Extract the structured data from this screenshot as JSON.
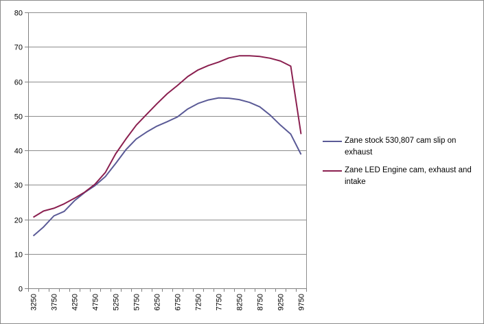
{
  "chart_data": {
    "type": "line",
    "title": "",
    "xlabel": "",
    "ylabel": "",
    "ylim": [
      0,
      80
    ],
    "yticks": [
      0,
      10,
      20,
      30,
      40,
      50,
      60,
      70,
      80
    ],
    "grid": "horizontal",
    "legend_position": "right",
    "x": [
      3250,
      3500,
      3750,
      4000,
      4250,
      4500,
      4750,
      5000,
      5250,
      5500,
      5750,
      6000,
      6250,
      6500,
      6750,
      7000,
      7250,
      7500,
      7750,
      8000,
      8250,
      8500,
      8750,
      9000,
      9250,
      9500,
      9750
    ],
    "xtick_labels": [
      "3250",
      "3750",
      "4250",
      "4750",
      "5250",
      "5750",
      "6250",
      "6750",
      "7250",
      "7750",
      "8250",
      "8750",
      "9250",
      "9750"
    ],
    "series": [
      {
        "name": "Zane stock 530,807 cam slip on exhaust",
        "color": "#5a5a96",
        "values": [
          15.2,
          17.8,
          21.0,
          22.3,
          25.4,
          27.8,
          29.8,
          32.4,
          36.2,
          40.2,
          43.3,
          45.3,
          47.0,
          48.3,
          49.7,
          52.0,
          53.6,
          54.6,
          55.2,
          55.1,
          54.7,
          53.9,
          52.6,
          50.2,
          47.3,
          44.7,
          38.8
        ]
      },
      {
        "name": "Zane LED Engine cam, exhaust and intake",
        "color": "#8a1f4f",
        "values": [
          20.6,
          22.4,
          23.2,
          24.5,
          26.1,
          27.9,
          30.2,
          33.6,
          39.0,
          43.3,
          47.3,
          50.4,
          53.5,
          56.4,
          58.8,
          61.4,
          63.3,
          64.6,
          65.6,
          66.8,
          67.4,
          67.4,
          67.2,
          66.7,
          65.9,
          64.4,
          44.7
        ]
      }
    ]
  }
}
